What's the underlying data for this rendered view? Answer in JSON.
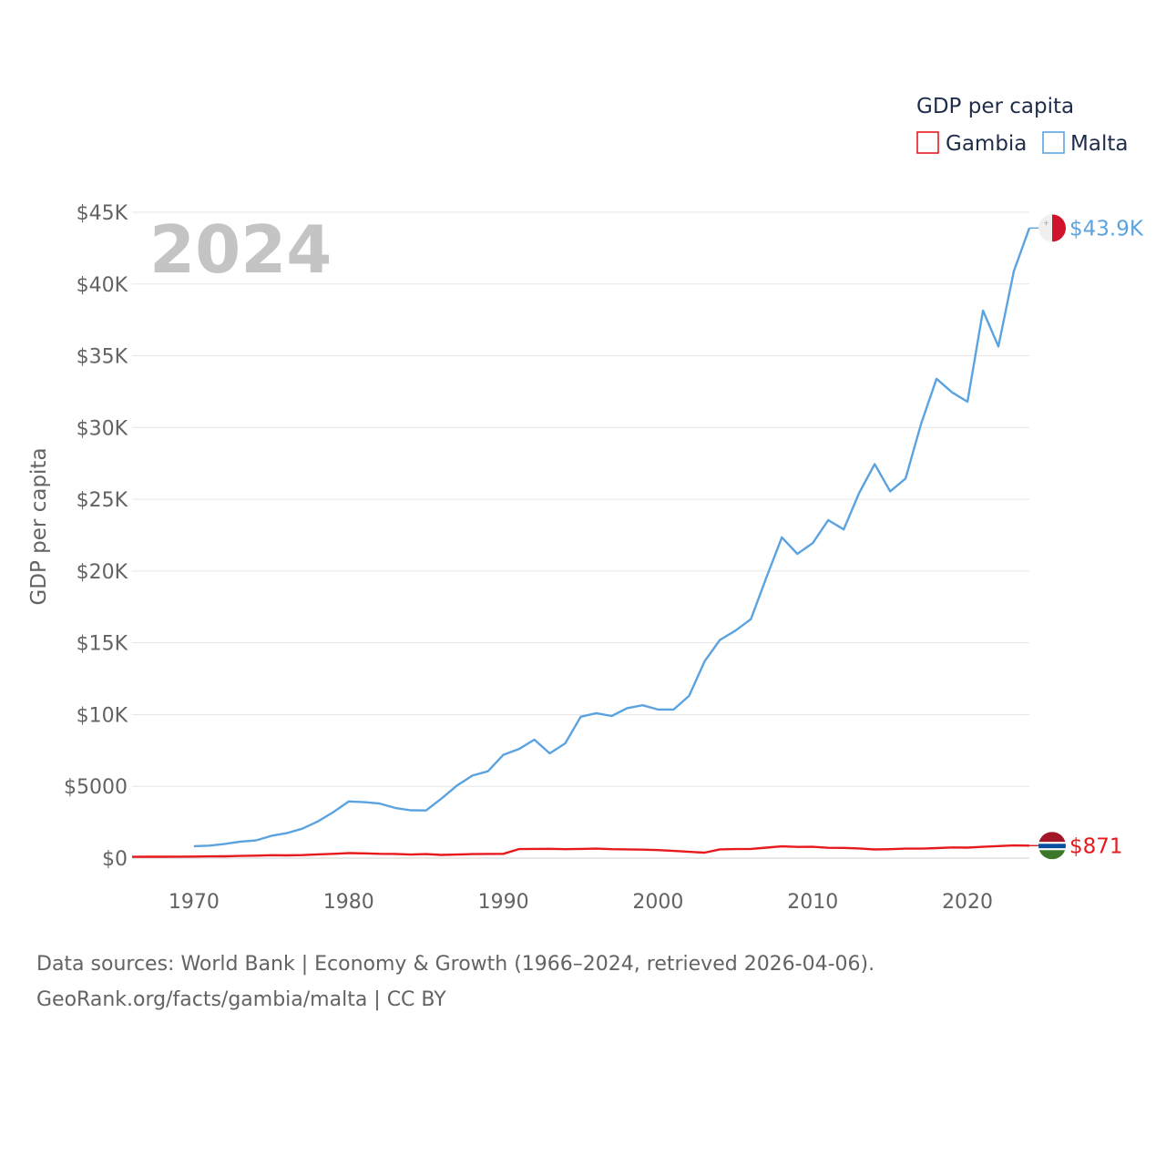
{
  "chart_data": {
    "type": "line",
    "title": "GDP per capita",
    "year_label": "2024",
    "ylabel": "GDP per capita",
    "xlabel": "",
    "xlim": [
      1966,
      2024
    ],
    "ylim": [
      0,
      45000
    ],
    "grid": true,
    "legend_title": "GDP per capita",
    "legend_position": "top-right",
    "y_ticks": [
      {
        "value": 0,
        "label": "$0"
      },
      {
        "value": 5000,
        "label": "$5000"
      },
      {
        "value": 10000,
        "label": "$10K"
      },
      {
        "value": 15000,
        "label": "$15K"
      },
      {
        "value": 20000,
        "label": "$20K"
      },
      {
        "value": 25000,
        "label": "$25K"
      },
      {
        "value": 30000,
        "label": "$30K"
      },
      {
        "value": 35000,
        "label": "$35K"
      },
      {
        "value": 40000,
        "label": "$40K"
      },
      {
        "value": 45000,
        "label": "$45K"
      }
    ],
    "x_ticks": [
      {
        "value": 1970,
        "label": "1970"
      },
      {
        "value": 1980,
        "label": "1980"
      },
      {
        "value": 1990,
        "label": "1990"
      },
      {
        "value": 2000,
        "label": "2000"
      },
      {
        "value": 2010,
        "label": "2010"
      },
      {
        "value": 2020,
        "label": "2020"
      }
    ],
    "series": [
      {
        "name": "Gambia",
        "color": "#e8191c",
        "end_label": "$871",
        "flag": "gambia-flag-icon",
        "x": [
          1966,
          1967,
          1968,
          1969,
          1970,
          1971,
          1972,
          1973,
          1974,
          1975,
          1976,
          1977,
          1978,
          1979,
          1980,
          1981,
          1982,
          1983,
          1984,
          1985,
          1986,
          1987,
          1988,
          1989,
          1990,
          1991,
          1992,
          1993,
          1994,
          1995,
          1996,
          1997,
          1998,
          1999,
          2000,
          2001,
          2002,
          2003,
          2004,
          2005,
          2006,
          2007,
          2008,
          2009,
          2010,
          2011,
          2012,
          2013,
          2014,
          2015,
          2016,
          2017,
          2018,
          2019,
          2020,
          2021,
          2022,
          2023,
          2024
        ],
        "y": [
          90,
          95,
          95,
          100,
          110,
          120,
          130,
          150,
          170,
          200,
          190,
          210,
          260,
          300,
          350,
          330,
          300,
          290,
          250,
          280,
          220,
          250,
          280,
          290,
          300,
          630,
          640,
          650,
          620,
          640,
          660,
          620,
          610,
          590,
          560,
          500,
          440,
          380,
          610,
          630,
          640,
          730,
          820,
          780,
          790,
          720,
          710,
          670,
          600,
          620,
          660,
          660,
          700,
          740,
          730,
          790,
          840,
          880,
          871
        ]
      },
      {
        "name": "Malta",
        "color": "#5ba3e0",
        "end_label": "$43.9K",
        "flag": "malta-flag-icon",
        "x": [
          1970,
          1971,
          1972,
          1973,
          1974,
          1975,
          1976,
          1977,
          1978,
          1979,
          1980,
          1981,
          1982,
          1983,
          1984,
          1985,
          1986,
          1987,
          1988,
          1989,
          1990,
          1991,
          1992,
          1993,
          1994,
          1995,
          1996,
          1997,
          1998,
          1999,
          2000,
          2001,
          2002,
          2003,
          2004,
          2005,
          2006,
          2007,
          2008,
          2009,
          2010,
          2011,
          2012,
          2013,
          2014,
          2015,
          2016,
          2017,
          2018,
          2019,
          2020,
          2021,
          2022,
          2023,
          2024
        ],
        "y": [
          830,
          870,
          990,
          1150,
          1230,
          1550,
          1740,
          2050,
          2550,
          3200,
          3950,
          3900,
          3800,
          3500,
          3330,
          3320,
          4150,
          5050,
          5750,
          6050,
          7200,
          7600,
          8250,
          7300,
          8000,
          9850,
          10100,
          9900,
          10450,
          10650,
          10350,
          10350,
          11300,
          13700,
          15200,
          15850,
          16650,
          19550,
          22350,
          21200,
          21950,
          23550,
          22900,
          25450,
          27450,
          25550,
          26450,
          30250,
          33400,
          32450,
          31800,
          38150,
          35650,
          40900,
          43900
        ]
      }
    ]
  },
  "footer": {
    "line1": "Data sources: World Bank | Economy & Growth (1966–2024, retrieved 2026-04-06).",
    "line2": "GeoRank.org/facts/gambia/malta | CC BY"
  }
}
